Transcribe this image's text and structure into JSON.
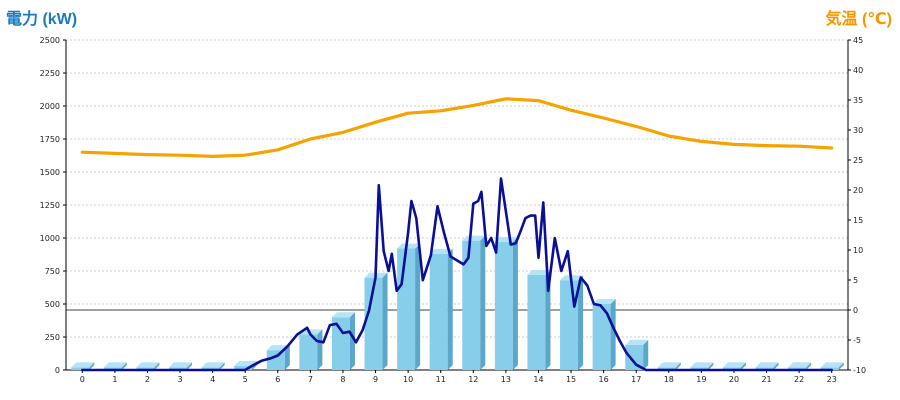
{
  "colors": {
    "left_axis_title": "#1a7bbf",
    "right_axis_title": "#f39800",
    "bars": "#87ceeb",
    "bars_side": "#5aa7c9",
    "bars_top": "#b5e4f6",
    "power_line": "#0a0f96",
    "temp_line": "#f6a200",
    "grid": "#bfbfbf",
    "zero_line": "#000000"
  },
  "chart_data": {
    "type": "bar",
    "title": "",
    "ylabel_left": "電力 (kW)",
    "ylabel_right": "気温 (℃)",
    "grid": true,
    "categories": [
      "0",
      "1",
      "2",
      "3",
      "4",
      "5",
      "6",
      "7",
      "8",
      "9",
      "10",
      "11",
      "12",
      "13",
      "14",
      "15",
      "16",
      "17",
      "18",
      "19",
      "20",
      "21",
      "22",
      "23"
    ],
    "ylim_left": [
      0,
      2500
    ],
    "ylim_right": [
      -10,
      45
    ],
    "yticks_left": [
      "0",
      "250",
      "500",
      "750",
      "1000",
      "1250",
      "1500",
      "1750",
      "2000",
      "2250",
      "2500"
    ],
    "yticks_right": [
      "-10",
      "-5",
      "0",
      "5",
      "10",
      "15",
      "20",
      "25",
      "30",
      "35",
      "40",
      "45"
    ],
    "series": [
      {
        "type": "bar",
        "axis": "left",
        "values": [
          20,
          20,
          20,
          20,
          20,
          30,
          150,
          270,
          400,
          700,
          920,
          880,
          980,
          970,
          720,
          680,
          500,
          190,
          20,
          20,
          20,
          20,
          20,
          20
        ]
      },
      {
        "type": "line",
        "axis": "left",
        "x": [
          0,
          1,
          2,
          3,
          4,
          5,
          5.2,
          5.5,
          5.8,
          6,
          6.3,
          6.6,
          6.9,
          7,
          7.2,
          7.4,
          7.6,
          7.8,
          8,
          8.2,
          8.4,
          8.6,
          8.8,
          9,
          9.1,
          9.25,
          9.4,
          9.5,
          9.65,
          9.8,
          10,
          10.1,
          10.25,
          10.45,
          10.7,
          10.9,
          11.1,
          11.3,
          11.5,
          11.7,
          11.85,
          12,
          12.15,
          12.25,
          12.4,
          12.55,
          12.7,
          12.85,
          13,
          13.15,
          13.3,
          13.45,
          13.6,
          13.75,
          13.9,
          14,
          14.15,
          14.3,
          14.5,
          14.7,
          14.9,
          15.1,
          15.3,
          15.5,
          15.7,
          15.9,
          16.1,
          16.3,
          16.5,
          16.7,
          17,
          17.3,
          17.6,
          18,
          19,
          20,
          21,
          22,
          23
        ],
        "values": [
          0,
          0,
          0,
          0,
          0,
          0,
          30,
          70,
          90,
          110,
          180,
          270,
          320,
          270,
          220,
          210,
          340,
          350,
          280,
          290,
          210,
          300,
          450,
          700,
          1400,
          900,
          750,
          880,
          600,
          650,
          1040,
          1280,
          1150,
          680,
          870,
          1240,
          1040,
          860,
          830,
          800,
          850,
          1260,
          1280,
          1350,
          940,
          1000,
          890,
          1450,
          1200,
          950,
          960,
          1050,
          1150,
          1170,
          1170,
          850,
          1270,
          600,
          1000,
          750,
          900,
          480,
          700,
          640,
          500,
          490,
          430,
          320,
          220,
          130,
          40,
          0,
          0,
          0,
          0,
          0,
          0,
          0,
          0
        ]
      },
      {
        "type": "line",
        "axis": "right",
        "x": [
          0,
          1,
          2,
          3,
          4,
          5,
          6,
          7,
          8,
          9,
          10,
          11,
          12,
          13,
          14,
          15,
          16,
          17,
          18,
          19,
          20,
          21,
          22,
          23
        ],
        "values": [
          26.3,
          26.1,
          25.9,
          25.8,
          25.6,
          25.8,
          26.7,
          28.5,
          29.6,
          31.3,
          32.8,
          33.2,
          34.1,
          35.2,
          34.9,
          33.3,
          32.0,
          30.6,
          29.0,
          28.1,
          27.6,
          27.4,
          27.3,
          27.0
        ]
      }
    ]
  }
}
